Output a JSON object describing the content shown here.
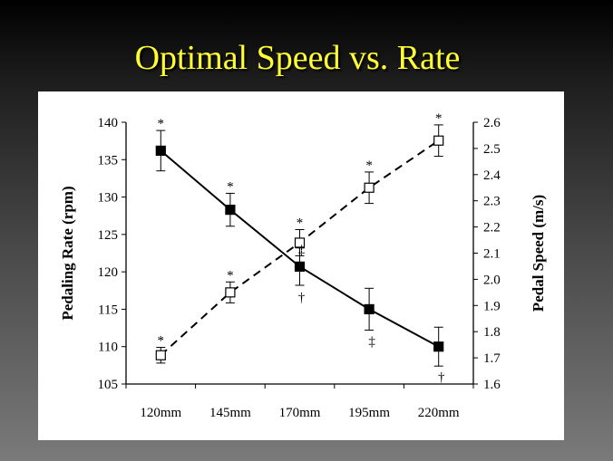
{
  "slide": {
    "title": "Optimal Speed vs. Rate"
  },
  "chart_data": {
    "type": "line",
    "title": "Optimal Speed vs. Rate",
    "categories": [
      "120mm",
      "145mm",
      "170mm",
      "195mm",
      "220mm"
    ],
    "y_left": {
      "label": "Pedaling Rate (rpm)",
      "range": [
        105,
        140
      ],
      "ticks": [
        "105",
        "110",
        "115",
        "120",
        "125",
        "130",
        "135",
        "140"
      ]
    },
    "y_right": {
      "label": "Pedal Speed (m/s)",
      "range": [
        1.6,
        2.6
      ],
      "ticks": [
        "1.6",
        "1.7",
        "1.8",
        "1.9",
        "2.0",
        "2.1",
        "2.2",
        "2.3",
        "2.4",
        "2.5",
        "2.6"
      ]
    },
    "series": [
      {
        "name": "Pedaling Rate",
        "axis": "left",
        "marker": "filled-square",
        "line": "solid",
        "values": [
          136.2,
          128.3,
          120.7,
          115.0,
          110.0
        ],
        "errors": [
          2.7,
          2.2,
          2.5,
          2.8,
          2.6
        ],
        "annotations": [
          "*",
          "*",
          "",
          "‡",
          "†"
        ]
      },
      {
        "name": "Pedal Speed",
        "axis": "right",
        "marker": "open-square",
        "line": "dashed",
        "values": [
          1.71,
          1.95,
          2.14,
          2.35,
          2.53
        ],
        "errors": [
          0.03,
          0.04,
          0.05,
          0.06,
          0.06
        ],
        "annotations": [
          "*",
          "*",
          "*",
          "*",
          "*"
        ]
      }
    ],
    "extra_annotations": [
      {
        "category": "170mm",
        "text": "‡"
      },
      {
        "category": "170mm",
        "text": "†"
      }
    ]
  }
}
